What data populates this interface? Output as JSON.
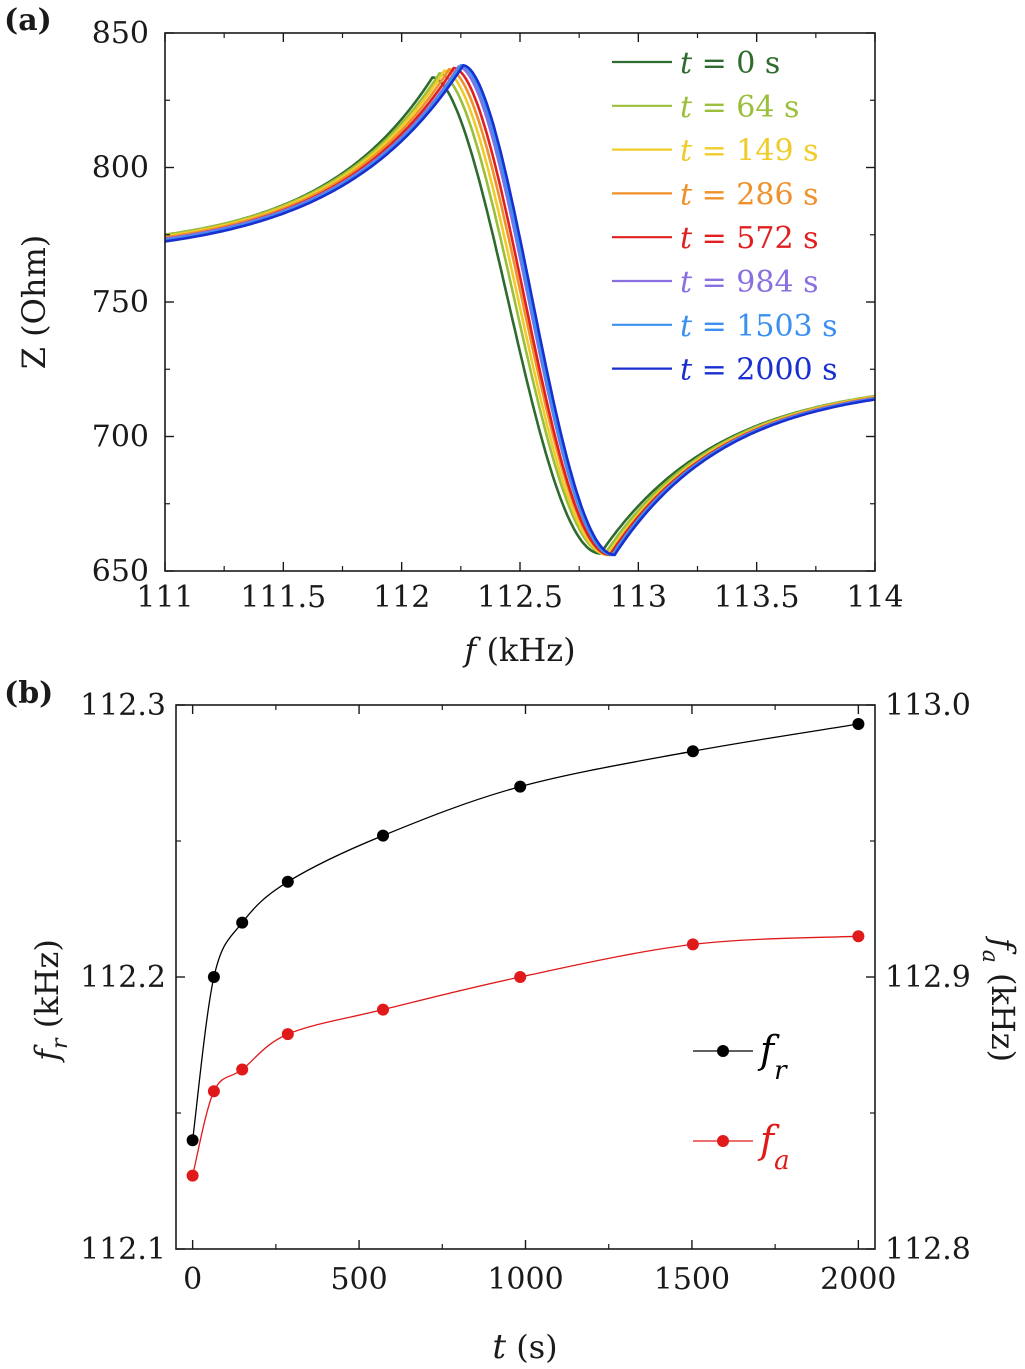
{
  "chart_data": [
    {
      "panel_label": "(a)",
      "type": "line",
      "xlabel": "f",
      "xlabel_unit": " (kHz)",
      "ylabel": "Z (Ohm)",
      "xlim": [
        111,
        114
      ],
      "ylim": [
        650,
        850
      ],
      "xticks": [
        "111",
        "111.5",
        "112",
        "112.5",
        "113",
        "113.5",
        "114"
      ],
      "yticks": [
        "650",
        "700",
        "750",
        "800",
        "850"
      ],
      "legend_position": "top-right",
      "series": [
        {
          "name": "t = 0 s",
          "t": "t",
          "label_rest": " = 0 s",
          "color": "#2e6b2e",
          "fa": 112.82,
          "fmax": 112.13,
          "zmax": 833.5,
          "zmin": 656.5,
          "shift": 0.0
        },
        {
          "name": "t = 64 s",
          "t": "t",
          "label_rest": " = 64 s",
          "color": "#9bbf3a",
          "fa": 112.84,
          "fmax": 112.16,
          "zmax": 835.0,
          "zmin": 656.5,
          "shift": 0.0
        },
        {
          "name": "t = 149 s",
          "t": "t",
          "label_rest": " = 149 s",
          "color": "#f0cc2a",
          "fa": 112.85,
          "fmax": 112.18,
          "zmax": 836.0,
          "zmin": 656.0,
          "shift": -0.5
        },
        {
          "name": "t = 286 s",
          "t": "t",
          "label_rest": " = 286 s",
          "color": "#f0902a",
          "fa": 112.86,
          "fmax": 112.2,
          "zmax": 836.5,
          "zmin": 656.0,
          "shift": -1.0
        },
        {
          "name": "t = 572 s",
          "t": "t",
          "label_rest": " = 572 s",
          "color": "#e02020",
          "fa": 112.86,
          "fmax": 112.22,
          "zmax": 837.0,
          "zmin": 656.0,
          "shift": -1.5
        },
        {
          "name": "t = 984 s",
          "t": "t",
          "label_rest": " = 984 s",
          "color": "#8a6fe0",
          "fa": 112.87,
          "fmax": 112.24,
          "zmax": 837.5,
          "zmin": 656.0,
          "shift": -1.5
        },
        {
          "name": "t = 1503 s",
          "t": "t",
          "label_rest": " = 1503 s",
          "color": "#3a8ff0",
          "fa": 112.87,
          "fmax": 112.25,
          "zmax": 838.0,
          "zmin": 656.0,
          "shift": -2.0
        },
        {
          "name": "t = 2000 s",
          "t": "t",
          "label_rest": " = 2000 s",
          "color": "#1a2fd0",
          "fa": 112.88,
          "fmax": 112.26,
          "zmax": 838.0,
          "zmin": 656.0,
          "shift": -2.5
        }
      ]
    },
    {
      "panel_label": "(b)",
      "type": "scatter",
      "xlabel": "t",
      "xlabel_unit": " (s)",
      "ylabel_left": "f",
      "ylabel_left_sub": "r",
      "ylabel_left_unit": " (kHz)",
      "ylabel_right": "f",
      "ylabel_right_sub": "a",
      "ylabel_right_unit": " (kHz)",
      "xlim": [
        -50,
        2050
      ],
      "ylim_left": [
        112.1,
        112.3
      ],
      "ylim_right": [
        112.8,
        113.0
      ],
      "xticks": [
        "0",
        "500",
        "1000",
        "1500",
        "2000"
      ],
      "yticks_left": [
        "112.1",
        "112.2",
        "112.3"
      ],
      "yticks_right": [
        "112.8",
        "112.9",
        "113.0"
      ],
      "x": [
        0,
        64,
        149,
        286,
        572,
        984,
        1503,
        2000
      ],
      "legend_position": "center-right",
      "series": [
        {
          "name": "f_r",
          "label_main": "f",
          "label_sub": "r",
          "axis": "left",
          "color": "#000000",
          "values": [
            112.14,
            112.2,
            112.22,
            112.235,
            112.252,
            112.27,
            112.283,
            112.293
          ]
        },
        {
          "name": "f_a",
          "label_main": "f",
          "label_sub": "a",
          "axis": "right",
          "color": "#e01a1a",
          "values": [
            112.827,
            112.858,
            112.866,
            112.879,
            112.888,
            112.9,
            112.912,
            112.915
          ]
        }
      ]
    }
  ]
}
